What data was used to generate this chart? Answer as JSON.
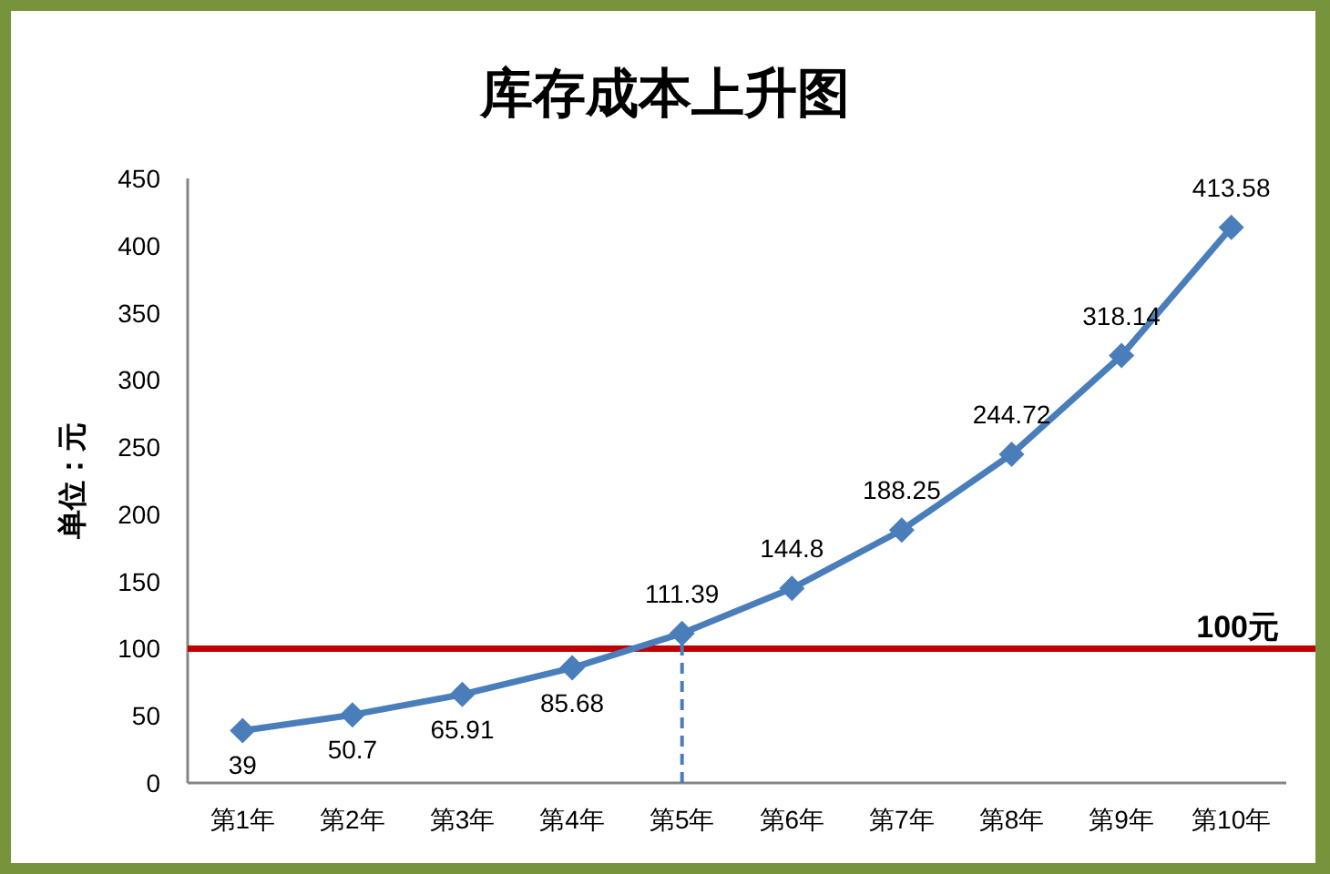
{
  "chart_data": {
    "type": "line",
    "title": "库存成本上升图",
    "ylabel": "单位：元",
    "categories": [
      "第1年",
      "第2年",
      "第3年",
      "第4年",
      "第5年",
      "第6年",
      "第7年",
      "第8年",
      "第9年",
      "第10年"
    ],
    "series": [
      {
        "color": "#4a7ebb",
        "values": [
          39,
          50.7,
          65.91,
          85.68,
          111.39,
          144.8,
          188.25,
          244.72,
          318.14,
          413.58
        ]
      }
    ],
    "ylim": [
      0,
      450
    ],
    "yticks": [
      0,
      50,
      100,
      150,
      200,
      250,
      300,
      350,
      400,
      450
    ],
    "data_labels": true,
    "marker": "diamond",
    "line_style": "solid",
    "ref_lines": [
      {
        "axis": "y",
        "value": 100,
        "label": "100元",
        "color": "#c00000",
        "line_style": "solid"
      },
      {
        "axis": "x",
        "value": "第5年",
        "color": "#4a7ebb",
        "line_style": "dashed"
      }
    ]
  }
}
